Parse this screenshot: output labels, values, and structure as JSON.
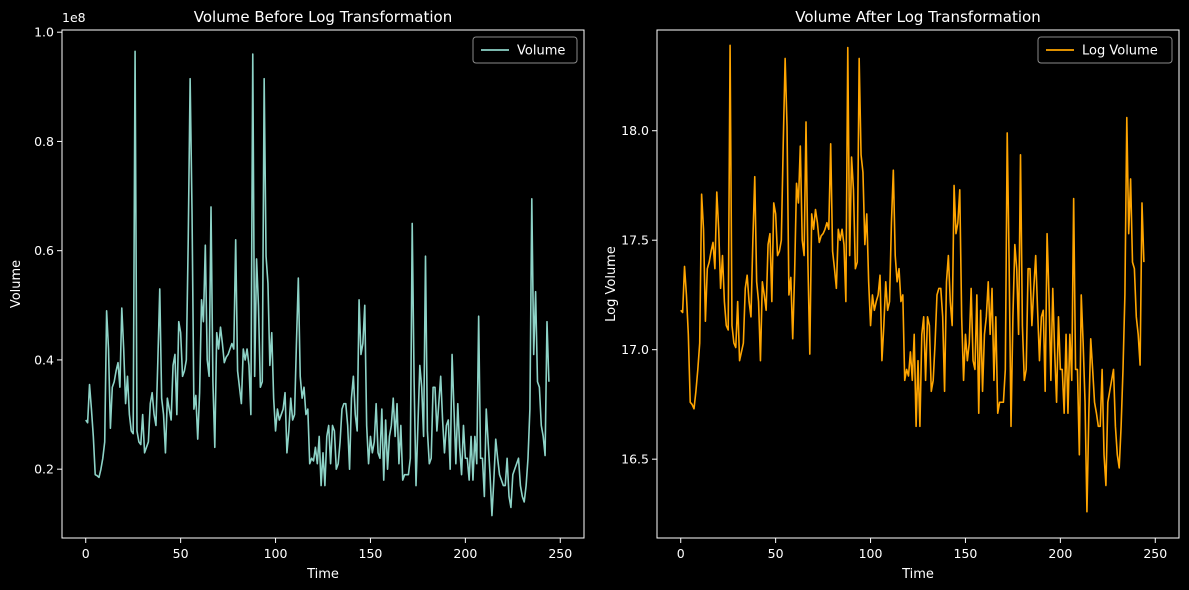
{
  "chart_data": [
    {
      "type": "line",
      "title": "Volume Before Log Transformation",
      "xlabel": "Time",
      "ylabel": "Volume",
      "y_offset_label": "1e8",
      "xlim": [
        -12.5,
        262.5
      ],
      "ylim": [
        0.074,
        1.004
      ],
      "xticks": [
        0,
        50,
        100,
        150,
        200,
        250
      ],
      "xtick_labels": [
        "0",
        "50",
        "100",
        "150",
        "200",
        "250"
      ],
      "yticks": [
        0.2,
        0.4,
        0.6,
        0.8,
        1.0
      ],
      "ytick_labels": [
        "0.2",
        "0.4",
        "0.6",
        "0.8",
        "1.0"
      ],
      "grid": false,
      "legend_position": "top-right",
      "color": "#8dd3c7",
      "series": [
        {
          "name": "Volume",
          "x_start": 0,
          "x_step": 1,
          "values": [
            0.29,
            0.285,
            0.355,
            0.31,
            0.26,
            0.19,
            0.188,
            0.185,
            0.2,
            0.22,
            0.25,
            0.49,
            0.42,
            0.275,
            0.35,
            0.36,
            0.38,
            0.395,
            0.35,
            0.495,
            0.42,
            0.32,
            0.37,
            0.3,
            0.27,
            0.265,
            0.965,
            0.27,
            0.25,
            0.245,
            0.3,
            0.23,
            0.24,
            0.25,
            0.32,
            0.34,
            0.3,
            0.28,
            0.4,
            0.53,
            0.33,
            0.3,
            0.23,
            0.33,
            0.31,
            0.29,
            0.39,
            0.41,
            0.3,
            0.47,
            0.45,
            0.37,
            0.38,
            0.4,
            0.62,
            0.915,
            0.67,
            0.31,
            0.335,
            0.255,
            0.34,
            0.51,
            0.47,
            0.61,
            0.4,
            0.37,
            0.68,
            0.36,
            0.24,
            0.45,
            0.42,
            0.46,
            0.43,
            0.395,
            0.405,
            0.41,
            0.42,
            0.43,
            0.42,
            0.62,
            0.38,
            0.35,
            0.32,
            0.42,
            0.4,
            0.42,
            0.39,
            0.3,
            0.96,
            0.37,
            0.585,
            0.5,
            0.35,
            0.36,
            0.915,
            0.59,
            0.54,
            0.39,
            0.45,
            0.33,
            0.27,
            0.31,
            0.29,
            0.3,
            0.31,
            0.34,
            0.23,
            0.27,
            0.33,
            0.29,
            0.3,
            0.43,
            0.55,
            0.37,
            0.33,
            0.35,
            0.3,
            0.31,
            0.21,
            0.22,
            0.215,
            0.24,
            0.21,
            0.26,
            0.17,
            0.23,
            0.17,
            0.26,
            0.28,
            0.21,
            0.28,
            0.27,
            0.2,
            0.21,
            0.25,
            0.31,
            0.32,
            0.32,
            0.28,
            0.2,
            0.33,
            0.37,
            0.3,
            0.27,
            0.51,
            0.41,
            0.43,
            0.5,
            0.28,
            0.21,
            0.26,
            0.23,
            0.25,
            0.32,
            0.23,
            0.22,
            0.31,
            0.18,
            0.29,
            0.2,
            0.26,
            0.28,
            0.33,
            0.26,
            0.32,
            0.21,
            0.28,
            0.18,
            0.19,
            0.19,
            0.19,
            0.22,
            0.65,
            0.36,
            0.17,
            0.28,
            0.39,
            0.35,
            0.26,
            0.59,
            0.27,
            0.21,
            0.22,
            0.35,
            0.35,
            0.27,
            0.32,
            0.37,
            0.29,
            0.23,
            0.28,
            0.29,
            0.2,
            0.41,
            0.31,
            0.21,
            0.32,
            0.24,
            0.19,
            0.28,
            0.22,
            0.22,
            0.18,
            0.26,
            0.18,
            0.26,
            0.21,
            0.48,
            0.22,
            0.22,
            0.15,
            0.31,
            0.25,
            0.19,
            0.115,
            0.18,
            0.255,
            0.22,
            0.19,
            0.18,
            0.17,
            0.17,
            0.22,
            0.15,
            0.13,
            0.19,
            0.2,
            0.21,
            0.22,
            0.17,
            0.15,
            0.14,
            0.17,
            0.22,
            0.31,
            0.695,
            0.41,
            0.525,
            0.36,
            0.35,
            0.28,
            0.26,
            0.225,
            0.47,
            0.36
          ]
        }
      ]
    },
    {
      "type": "line",
      "title": "Volume After Log Transformation",
      "xlabel": "Time",
      "ylabel": "Log Volume",
      "xlim": [
        -12.5,
        262.5
      ],
      "ylim": [
        16.14,
        18.46
      ],
      "xticks": [
        0,
        50,
        100,
        150,
        200,
        250
      ],
      "xtick_labels": [
        "0",
        "50",
        "100",
        "150",
        "200",
        "250"
      ],
      "yticks": [
        16.5,
        17.0,
        17.5,
        18.0
      ],
      "ytick_labels": [
        "16.5",
        "17.0",
        "17.5",
        "18.0"
      ],
      "grid": false,
      "legend_position": "top-right",
      "color": "#ffa500",
      "series": [
        {
          "name": "Log Volume",
          "x_start": 0,
          "x_step": 1,
          "values": [
            17.18,
            17.17,
            17.38,
            17.25,
            17.07,
            16.76,
            16.75,
            16.73,
            16.81,
            16.91,
            17.03,
            17.71,
            17.55,
            17.13,
            17.37,
            17.4,
            17.45,
            17.49,
            17.37,
            17.72,
            17.55,
            17.28,
            17.43,
            17.22,
            17.11,
            17.09,
            18.39,
            17.11,
            17.03,
            17.01,
            17.22,
            16.95,
            16.99,
            17.03,
            17.28,
            17.34,
            17.22,
            17.15,
            17.5,
            17.79,
            17.31,
            17.22,
            16.95,
            17.31,
            17.25,
            17.18,
            17.48,
            17.53,
            17.22,
            17.67,
            17.62,
            17.43,
            17.45,
            17.5,
            17.94,
            18.33,
            18.02,
            17.25,
            17.33,
            17.05,
            17.35,
            17.76,
            17.67,
            17.93,
            17.5,
            17.43,
            18.04,
            17.4,
            16.98,
            17.62,
            17.55,
            17.64,
            17.58,
            17.49,
            17.52,
            17.53,
            17.55,
            17.58,
            17.55,
            17.94,
            17.45,
            17.37,
            17.28,
            17.55,
            17.5,
            17.55,
            17.48,
            17.22,
            18.38,
            17.43,
            17.88,
            17.73,
            17.37,
            17.4,
            18.33,
            17.89,
            17.81,
            17.48,
            17.62,
            17.31,
            17.11,
            17.25,
            17.18,
            17.22,
            17.25,
            17.34,
            16.95,
            17.11,
            17.31,
            17.18,
            17.22,
            17.58,
            17.82,
            17.43,
            17.31,
            17.37,
            17.22,
            17.25,
            16.86,
            16.91,
            16.88,
            16.99,
            16.86,
            17.07,
            16.65,
            16.95,
            16.65,
            17.07,
            17.15,
            16.86,
            17.15,
            17.11,
            16.81,
            16.86,
            17.03,
            17.25,
            17.28,
            17.28,
            17.15,
            16.81,
            17.31,
            17.43,
            17.22,
            17.11,
            17.75,
            17.53,
            17.58,
            17.73,
            17.15,
            16.86,
            17.07,
            16.95,
            17.03,
            17.28,
            16.95,
            16.91,
            17.25,
            16.71,
            17.18,
            16.81,
            17.07,
            17.15,
            17.31,
            17.07,
            17.28,
            16.86,
            17.15,
            16.71,
            16.76,
            16.76,
            16.76,
            16.91,
            17.99,
            17.4,
            16.65,
            17.15,
            17.48,
            17.37,
            17.07,
            17.89,
            17.11,
            16.86,
            16.91,
            17.37,
            17.37,
            17.11,
            17.28,
            17.43,
            17.18,
            16.95,
            17.15,
            17.18,
            16.81,
            17.53,
            17.25,
            16.86,
            17.28,
            16.99,
            16.76,
            17.15,
            16.91,
            16.91,
            16.71,
            17.07,
            16.71,
            17.07,
            16.86,
            17.69,
            16.91,
            16.91,
            16.52,
            17.25,
            17.03,
            16.76,
            16.26,
            16.71,
            17.05,
            16.91,
            16.76,
            16.71,
            16.65,
            16.65,
            16.91,
            16.52,
            16.38,
            16.76,
            16.81,
            16.86,
            16.91,
            16.65,
            16.52,
            16.46,
            16.65,
            16.91,
            17.25,
            18.06,
            17.53,
            17.78,
            17.4,
            17.37,
            17.15,
            17.07,
            16.93,
            17.67,
            17.4
          ]
        }
      ]
    }
  ]
}
